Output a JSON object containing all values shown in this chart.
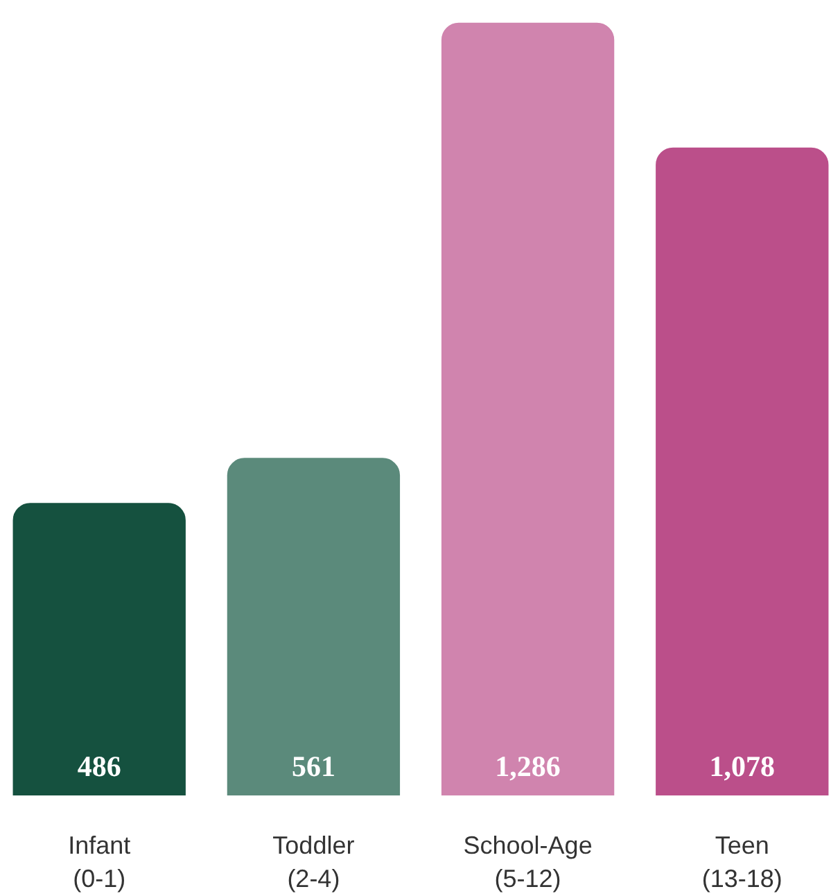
{
  "chart_data": {
    "type": "bar",
    "categories": [
      "Infant\n(0-1)",
      "Toddler\n(2-4)",
      "School-Age\n(5-12)",
      "Teen\n(13-18)"
    ],
    "values": [
      486,
      561,
      1286,
      1078
    ],
    "colors": [
      "#15513f",
      "#5b8a7b",
      "#d084ae",
      "#bb4f8a"
    ],
    "value_labels": [
      "486",
      "561",
      "1,286",
      "1,078"
    ],
    "grid": false
  }
}
